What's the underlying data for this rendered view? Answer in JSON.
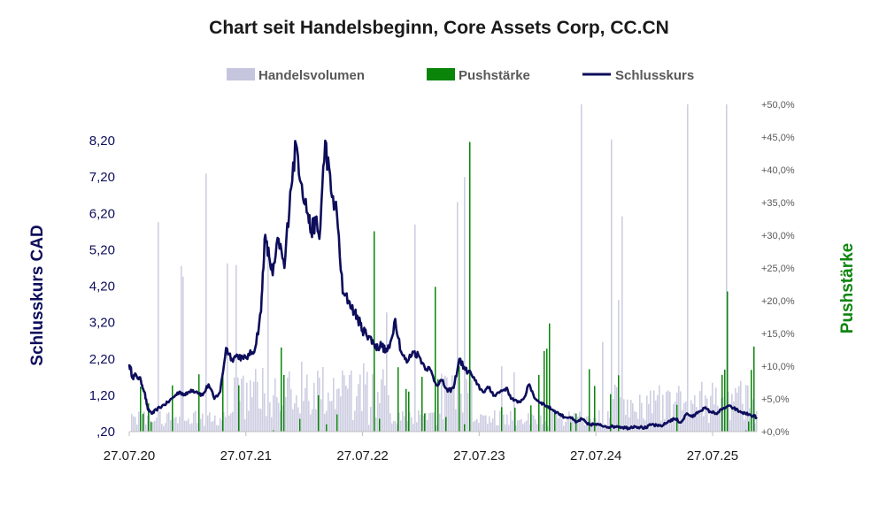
{
  "chart_data": {
    "type": "line",
    "title": "Chart seit Handelsbeginn, Core Assets Corp, CC.CN",
    "ylabel_left": "Schlusskurs CAD",
    "ylabel_right": "Pushstärke",
    "legend": [
      {
        "name": "Handelsvolumen",
        "kind": "area",
        "color": "#c5c5de"
      },
      {
        "name": "Pushstärke",
        "kind": "bar",
        "color": "#0a850a"
      },
      {
        "name": "Schlusskurs",
        "kind": "line",
        "color": "#0d0d5c"
      }
    ],
    "colors": {
      "price": "#0d0d5c",
      "push": "#0a850a",
      "volume": "#c5c5de"
    },
    "x_tick_labels": [
      "27.07.20",
      "27.07.21",
      "27.07.22",
      "27.07.23",
      "27.07.24",
      "27.07.25"
    ],
    "x_tick_years": [
      2020.57,
      2021.57,
      2022.57,
      2023.57,
      2024.57,
      2025.57
    ],
    "x_range": [
      2020.57,
      2025.95
    ],
    "y_left_range": [
      0.2,
      9.2
    ],
    "y_left_ticks": [
      0.2,
      1.2,
      2.2,
      3.2,
      4.2,
      5.2,
      6.2,
      7.2,
      8.2
    ],
    "y_left_tick_labels": [
      ",20",
      "1,20",
      "2,20",
      "3,20",
      "4,20",
      "5,20",
      "6,20",
      "7,20",
      "8,20"
    ],
    "y_right_range": [
      0,
      50
    ],
    "y_right_ticks": [
      0,
      5,
      10,
      15,
      20,
      25,
      30,
      35,
      40,
      45,
      50
    ],
    "y_right_tick_labels": [
      "+0,0%",
      "+5,0%",
      "+10,0%",
      "+15,0%",
      "+20,0%",
      "+25,0%",
      "+30,0%",
      "+35,0%",
      "+40,0%",
      "+45,0%",
      "+50,0%"
    ],
    "series": [
      {
        "name": "Schlusskurs",
        "x": [
          2020.57,
          2020.6,
          2020.63,
          2020.67,
          2020.7,
          2020.73,
          2020.77,
          2020.8,
          2020.85,
          2020.9,
          2020.95,
          2021.0,
          2021.05,
          2021.1,
          2021.15,
          2021.2,
          2021.25,
          2021.3,
          2021.35,
          2021.4,
          2021.45,
          2021.5,
          2021.55,
          2021.6,
          2021.65,
          2021.7,
          2021.73,
          2021.77,
          2021.8,
          2021.85,
          2021.9,
          2021.95,
          2022.0,
          2022.05,
          2022.1,
          2022.13,
          2022.17,
          2022.2,
          2022.25,
          2022.3,
          2022.35,
          2022.4,
          2022.45,
          2022.5,
          2022.53,
          2022.57,
          2022.6,
          2022.63,
          2022.67,
          2022.7,
          2022.73,
          2022.77,
          2022.8,
          2022.85,
          2022.9,
          2022.95,
          2023.0,
          2023.05,
          2023.1,
          2023.15,
          2023.2,
          2023.25,
          2023.3,
          2023.35,
          2023.4,
          2023.45,
          2023.5,
          2023.55,
          2023.6,
          2023.65,
          2023.7,
          2023.75,
          2023.8,
          2023.85,
          2023.9,
          2023.95,
          2024.0,
          2024.05,
          2024.1,
          2024.15,
          2024.2,
          2024.25,
          2024.3,
          2024.35,
          2024.4,
          2024.45,
          2024.5,
          2024.55,
          2024.6,
          2024.65,
          2024.7,
          2024.75,
          2024.8,
          2024.85,
          2024.9,
          2024.95,
          2025.0,
          2025.05,
          2025.1,
          2025.15,
          2025.2,
          2025.25,
          2025.3,
          2025.35,
          2025.4,
          2025.45,
          2025.5,
          2025.55,
          2025.6,
          2025.65,
          2025.7,
          2025.75,
          2025.8,
          2025.85,
          2025.9,
          2025.95
        ],
        "values": [
          2.05,
          1.7,
          1.75,
          1.6,
          1.3,
          0.8,
          0.7,
          0.8,
          0.9,
          1.0,
          1.15,
          1.3,
          1.2,
          1.35,
          1.3,
          1.2,
          1.5,
          1.1,
          1.3,
          2.5,
          2.2,
          2.3,
          2.2,
          2.3,
          2.5,
          3.5,
          5.5,
          5.0,
          4.5,
          5.5,
          4.7,
          6.8,
          8.1,
          7.0,
          6.2,
          5.7,
          6.0,
          5.5,
          8.2,
          6.8,
          6.2,
          4.0,
          3.8,
          3.5,
          3.3,
          3.0,
          2.9,
          2.8,
          2.6,
          2.5,
          2.6,
          2.4,
          2.5,
          3.3,
          2.4,
          2.1,
          2.4,
          2.3,
          2.0,
          1.9,
          1.5,
          1.6,
          1.3,
          1.4,
          2.2,
          1.9,
          1.8,
          1.5,
          1.3,
          1.4,
          1.2,
          1.3,
          1.4,
          1.1,
          1.0,
          1.1,
          1.5,
          1.1,
          1.0,
          0.9,
          0.8,
          0.7,
          0.6,
          0.6,
          0.45,
          0.55,
          0.4,
          0.4,
          0.38,
          0.35,
          0.33,
          0.35,
          0.32,
          0.3,
          0.35,
          0.32,
          0.3,
          0.4,
          0.35,
          0.38,
          0.5,
          0.55,
          0.45,
          0.7,
          0.6,
          0.75,
          0.85,
          0.75,
          0.7,
          0.8,
          0.9,
          0.85,
          0.75,
          0.7,
          0.65,
          0.6
        ]
      }
    ]
  }
}
